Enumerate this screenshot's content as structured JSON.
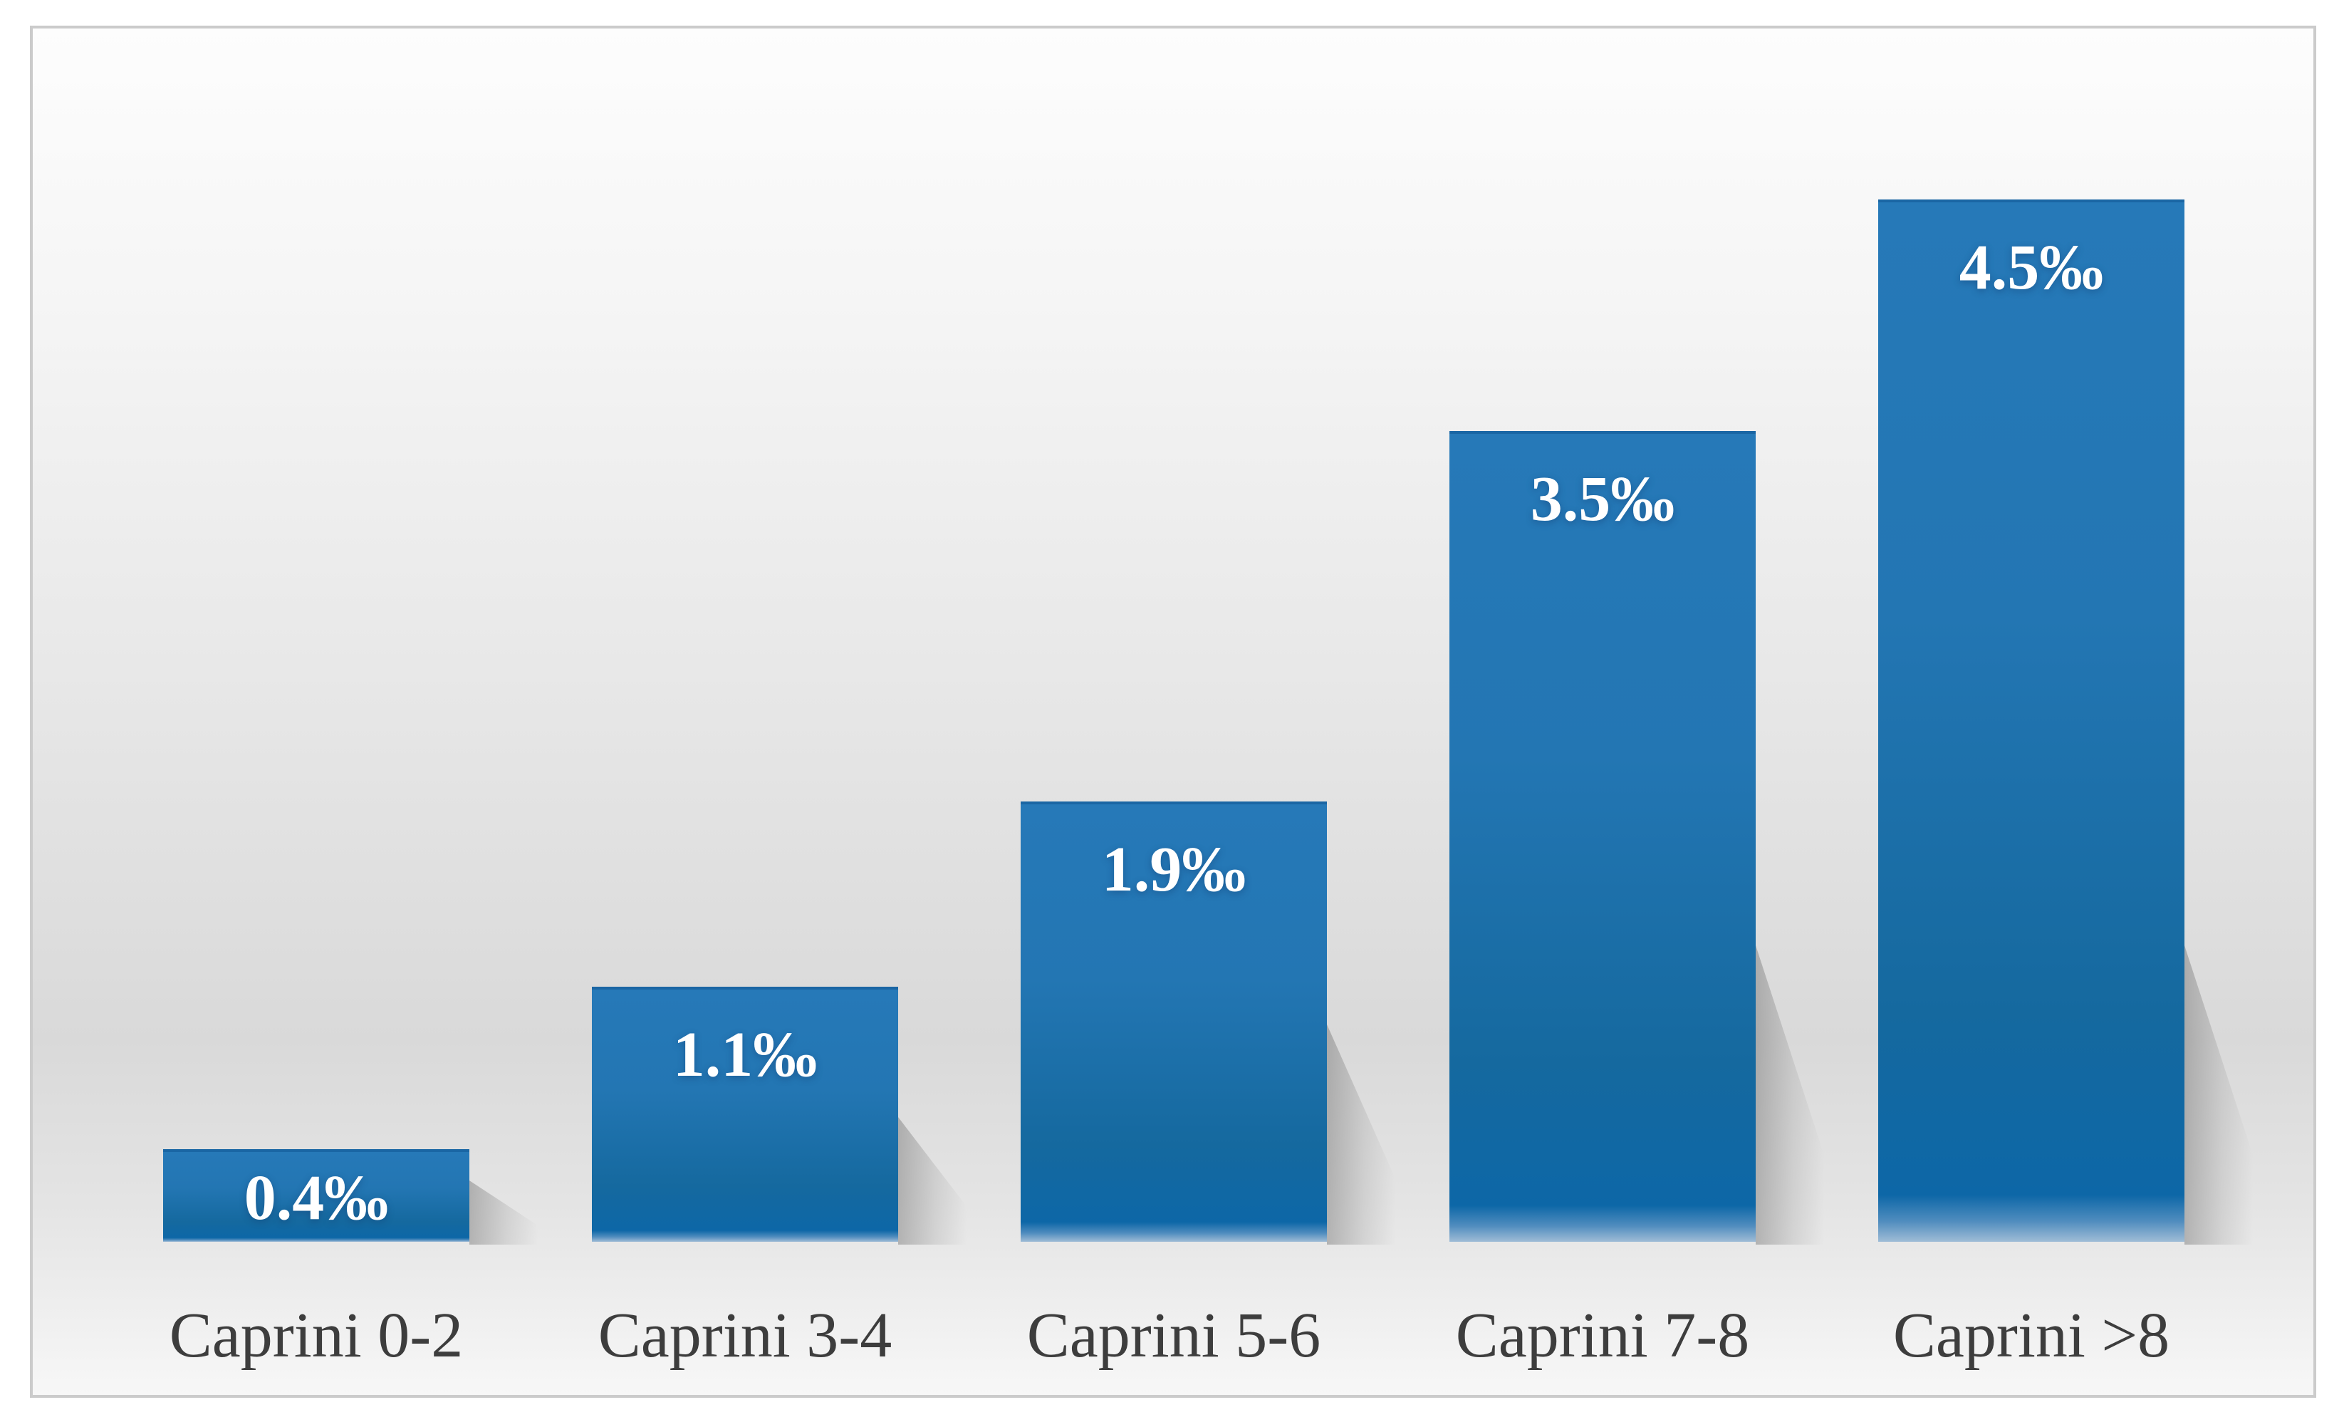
{
  "chart_data": {
    "type": "bar",
    "title": "",
    "xlabel": "",
    "ylabel": "",
    "unit": "‰",
    "categories": [
      "Caprini 0-2",
      "Caprini 3-4",
      "Caprini 5-6",
      "Caprini 7-8",
      "Caprini >8"
    ],
    "values": [
      0.4,
      1.1,
      1.9,
      3.5,
      4.5
    ],
    "value_labels": [
      "0.4‰",
      "1.1‰",
      "1.9‰",
      "3.5‰",
      "4.5‰"
    ],
    "ylim": [
      0,
      5.2
    ],
    "grid": false,
    "legend": false,
    "value_label_position": "inside-top",
    "colors": {
      "bar_top": "#2679b8",
      "bar_bottom": "#0d67a7",
      "bar_top_edge": "#1a66a4",
      "bar_bottom_highlight": "#9fbcd6",
      "value_label": "#ffffff",
      "axis_label": "#3d3d3d",
      "frame_border": "#cbcbcb",
      "background_light": "#fdfdfd",
      "background_dark": "#d9d9d9",
      "shadow": "#696969"
    }
  }
}
